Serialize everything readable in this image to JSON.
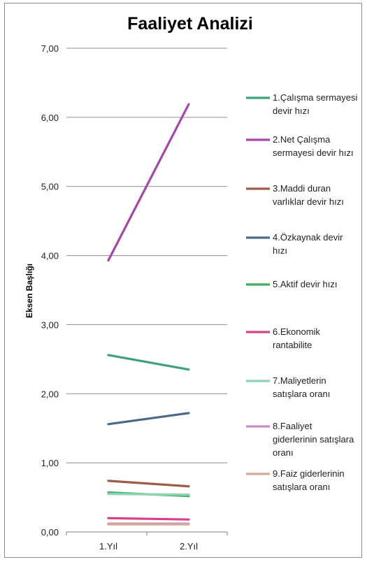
{
  "chart_data": {
    "type": "line",
    "title": "Faaliyet Analizi",
    "xlabel": "",
    "ylabel": "Eksen Başlığı",
    "categories": [
      "1.Yıl",
      "2.Yıl"
    ],
    "ylim": [
      0,
      7
    ],
    "ytick_labels": [
      "0,00",
      "1,00",
      "2,00",
      "3,00",
      "4,00",
      "5,00",
      "6,00",
      "7,00"
    ],
    "grid": true,
    "legend_position": "right",
    "series": [
      {
        "name": "1.Çalışma sermayesi devir hızı",
        "legend_lines": [
          "1.Çalışma sermayesi",
          "devir hızı"
        ],
        "color": "#3da27a",
        "values": [
          2.56,
          2.35
        ]
      },
      {
        "name": "2.Net Çalışma sermayesi devir hızı",
        "legend_lines": [
          "2.Net Çalışma",
          "sermayesi devir hızı"
        ],
        "color": "#a646ad",
        "values": [
          3.93,
          6.19
        ]
      },
      {
        "name": "3.Maddi duran varlıklar devir hızı",
        "legend_lines": [
          "3.Maddi duran",
          "varlıklar devir hızı"
        ],
        "color": "#9e5e45",
        "values": [
          0.74,
          0.66
        ]
      },
      {
        "name": "4.Özkaynak devir hızı",
        "legend_lines": [
          "4.Özkaynak devir",
          "hızı"
        ],
        "color": "#4a6a88",
        "values": [
          1.56,
          1.72
        ]
      },
      {
        "name": "5.Aktif devir hızı",
        "legend_lines": [
          "5.Aktif devir hızı"
        ],
        "color": "#3fae58",
        "values": [
          0.57,
          0.52
        ]
      },
      {
        "name": "6.Ekonomik rantabilite",
        "legend_lines": [
          "6.Ekonomik",
          "rantabilite"
        ],
        "color": "#d9408a",
        "values": [
          0.2,
          0.18
        ]
      },
      {
        "name": "7.Maliyetlerin satışlara oranı",
        "legend_lines": [
          "7.Maliyetlerin",
          "satışlara oranı"
        ],
        "color": "#8ed3b6",
        "values": [
          0.55,
          0.54
        ]
      },
      {
        "name": "8.Faaliyet giderlerinin satışlara oranı",
        "legend_lines": [
          "8.Faaliyet",
          "giderlerinin satışlara",
          "oranı"
        ],
        "color": "#c88ec7",
        "values": [
          0.12,
          0.12
        ]
      },
      {
        "name": "9.Faiz giderlerinin satışlara oranı",
        "legend_lines": [
          "9.Faiz giderlerinin",
          "satışlara oranı"
        ],
        "color": "#d2ab98",
        "values": [
          0.11,
          0.11
        ]
      }
    ]
  }
}
